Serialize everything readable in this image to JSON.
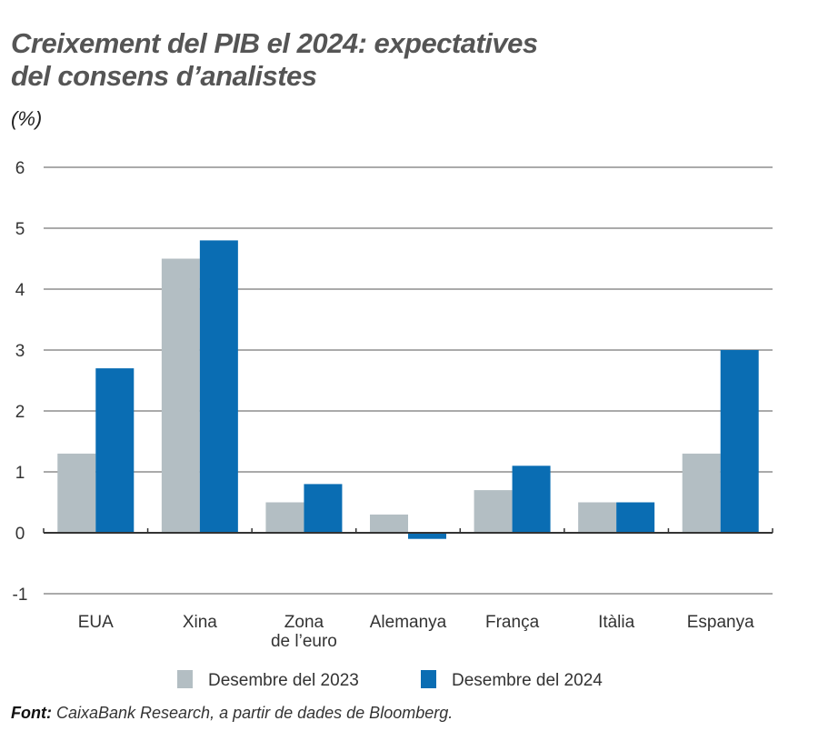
{
  "chart_data": {
    "type": "bar",
    "title": "Creixement del PIB el 2024: expectatives del consens d’analistes",
    "title_lines": [
      "Creixement del PIB el 2024: expectatives",
      "del consens d’analistes"
    ],
    "ylabel": "(%)",
    "xlabel": "",
    "ylim": [
      -1,
      6
    ],
    "yticks": [
      6,
      5,
      4,
      3,
      2,
      1,
      0,
      -1
    ],
    "grid": true,
    "legend_position": "bottom",
    "categories": [
      [
        "EUA"
      ],
      [
        "Xina"
      ],
      [
        "Zona",
        "de l’euro"
      ],
      [
        "Alemanya"
      ],
      [
        "França"
      ],
      [
        "Itàlia"
      ],
      [
        "Espanya"
      ]
    ],
    "series": [
      {
        "name": "Desembre del 2023",
        "color": "#b3bec3",
        "values": [
          1.3,
          4.5,
          0.5,
          0.3,
          0.7,
          0.5,
          1.3
        ]
      },
      {
        "name": "Desembre del 2024",
        "color": "#0a6db3",
        "values": [
          2.7,
          4.8,
          0.8,
          -0.1,
          1.1,
          0.5,
          3.0
        ]
      }
    ]
  },
  "source": {
    "label": "Font:",
    "text": " CaixaBank Research, a partir de dades de Bloomberg."
  }
}
